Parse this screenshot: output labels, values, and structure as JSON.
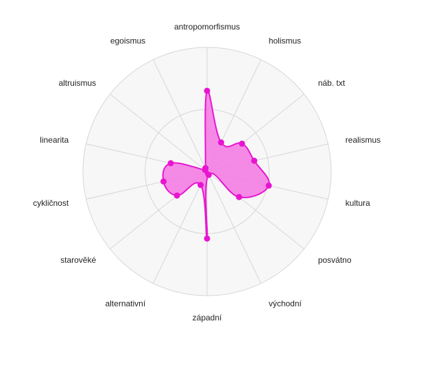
{
  "chart_data": {
    "type": "radar",
    "title": "",
    "max": 10,
    "rings": [
      5,
      10
    ],
    "axes": [
      "antropomorfismus",
      "holismus",
      "náb. txt",
      "realismus",
      "kultura",
      "posvátno",
      "východní",
      "západní",
      "alternativní",
      "starověké",
      "cykličnost",
      "linearita",
      "altruismus",
      "egoismus"
    ],
    "series": [
      {
        "values": [
          6.5,
          2.6,
          3.6,
          3.9,
          5.1,
          3.3,
          0.3,
          5.4,
          1.2,
          3.1,
          3.6,
          3.0,
          0.2,
          0.3
        ]
      }
    ],
    "colors": {
      "line": "#e815d0",
      "fill": "#f47de3",
      "ring_bg": "#f7f7f7",
      "grid": "#d6d6d6",
      "label": "#222222"
    }
  }
}
